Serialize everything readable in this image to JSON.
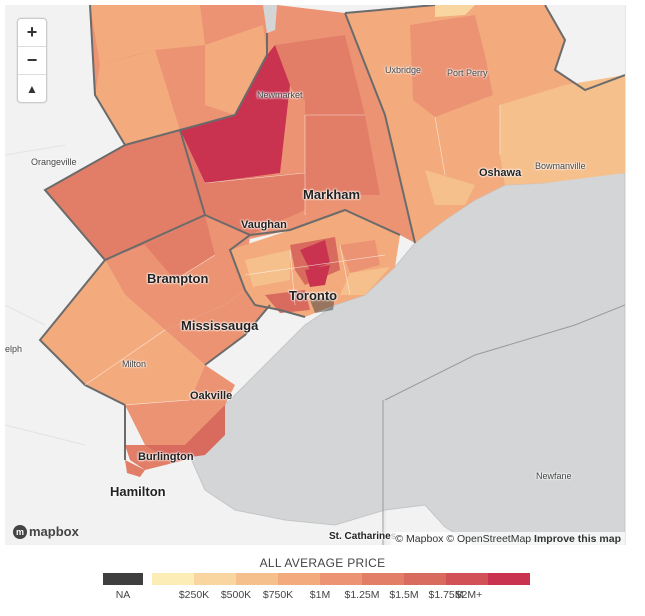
{
  "map": {
    "places_major": {
      "markham": "Markham",
      "vaughan": "Vaughan",
      "brampton": "Brampton",
      "mississauga": "Mississauga",
      "toronto": "Toronto",
      "oshawa": "Oshawa",
      "oakville": "Oakville",
      "burlington": "Burlington",
      "hamilton": "Hamilton",
      "newmarket": "Newmarket"
    },
    "places_minor": {
      "uxbridge": "Uxbridge",
      "port_perry": "Port Perry",
      "bowmanville": "Bowmanville",
      "orangeville": "Orangeville",
      "milton": "Milton",
      "guelph_partial": "elph",
      "st_catharines": "St. Catharines",
      "newfane": "Newfane"
    },
    "zoom_in": "+",
    "zoom_out": "−",
    "compass": "▲",
    "logo": "mapbox",
    "attribution": {
      "mapbox": "© Mapbox",
      "osm": "© OpenStreetMap",
      "improve": "Improve this map"
    }
  },
  "legend": {
    "title": "ALL AVERAGE PRICE",
    "labels": [
      "NA",
      "$250K",
      "$500K",
      "$750K",
      "$1M",
      "$1.25M",
      "$1.5M",
      "$1.75M",
      "$2M+"
    ],
    "colors": {
      "na": "#3f3f3f",
      "bins": [
        "#fcedb7",
        "#f9d59f",
        "#f6c08d",
        "#f3ab7e",
        "#eb9372",
        "#e27e67",
        "#d86a5e",
        "#d15156",
        "#c93350"
      ]
    }
  },
  "colors": {
    "land": "#f2f2f2",
    "water": "#d2d4d6",
    "region_border": "#6b6b6b"
  }
}
